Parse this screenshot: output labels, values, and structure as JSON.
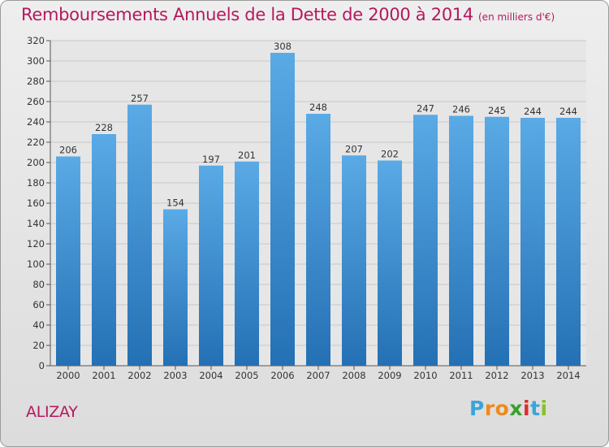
{
  "header": {
    "title": "Remboursements Annuels de la Dette de 2000 à 2014",
    "subtitle": "(en milliers d'€)"
  },
  "location": "ALIZAY",
  "logo": {
    "letters": [
      {
        "ch": "P",
        "color": "#3aa6d8"
      },
      {
        "ch": "r",
        "color": "#ef8a1a"
      },
      {
        "ch": "o",
        "color": "#ef8a1a"
      },
      {
        "ch": "x",
        "color": "#3b9e2f"
      },
      {
        "ch": "i",
        "color": "#d92e2e"
      },
      {
        "ch": "t",
        "color": "#3aa6d8"
      },
      {
        "ch": "i",
        "color": "#8bbf2a"
      }
    ]
  },
  "colors": {
    "bar_top": "#5aaae6",
    "bar_bottom": "#2470b4",
    "title": "#b5185f"
  },
  "chart_data": {
    "type": "bar",
    "categories": [
      "2000",
      "2001",
      "2002",
      "2003",
      "2004",
      "2005",
      "2006",
      "2007",
      "2008",
      "2009",
      "2010",
      "2011",
      "2012",
      "2013",
      "2014"
    ],
    "values": [
      206,
      228,
      257,
      154,
      197,
      201,
      308,
      248,
      207,
      202,
      247,
      246,
      245,
      244,
      244
    ],
    "data_labels": [
      "206",
      "228",
      "257",
      "154",
      "197",
      "201",
      "308",
      "248",
      "207",
      "202",
      "247",
      "246",
      "245",
      "244",
      "244"
    ],
    "yticks": [
      "0",
      "20",
      "40",
      "60",
      "80",
      "100",
      "120",
      "140",
      "160",
      "180",
      "200",
      "220",
      "240",
      "260",
      "280",
      "300",
      "320"
    ],
    "ylim": [
      0,
      320
    ],
    "grid": true,
    "title": "Remboursements Annuels de la Dette de 2000 à 2014",
    "xlabel": "",
    "ylabel": ""
  }
}
